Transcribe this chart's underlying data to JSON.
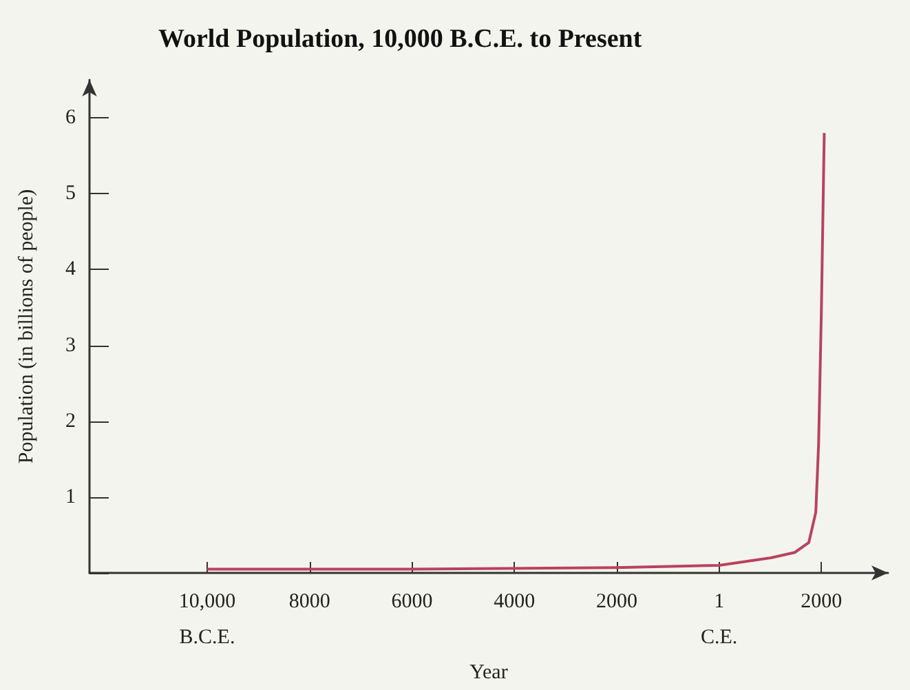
{
  "chart_data": {
    "type": "line",
    "title": "World Population, 10,000 B.C.E. to Present",
    "xlabel": "Year",
    "ylabel": "Population (in billions of people)",
    "x": [
      -10000,
      -6000,
      -2000,
      1,
      1014,
      1479,
      1753,
      1890,
      1945,
      2000,
      2055
    ],
    "series": [
      {
        "color": "#b8435f",
        "values": [
          0.05,
          0.05,
          0.07,
          0.1,
          0.2,
          0.27,
          0.4,
          0.8,
          1.7,
          3.5,
          5.8
        ]
      }
    ],
    "xlim": [
      -12300,
      3300
    ],
    "xticks": [
      {
        "value": -10000,
        "label": "10,000\nB.C.E."
      },
      {
        "value": -8000,
        "label": "8000"
      },
      {
        "value": -6000,
        "label": "6000"
      },
      {
        "value": -4000,
        "label": "4000"
      },
      {
        "value": -2000,
        "label": "2000"
      },
      {
        "value": 1,
        "label": "1\nC.E."
      },
      2000
    ],
    "ylim": [
      0,
      6.5
    ],
    "yticks": [
      {
        "value": 0,
        "label": null
      },
      1,
      2,
      3,
      4,
      5,
      6
    ],
    "grid": false,
    "marker": "none",
    "line_style": "solid"
  }
}
